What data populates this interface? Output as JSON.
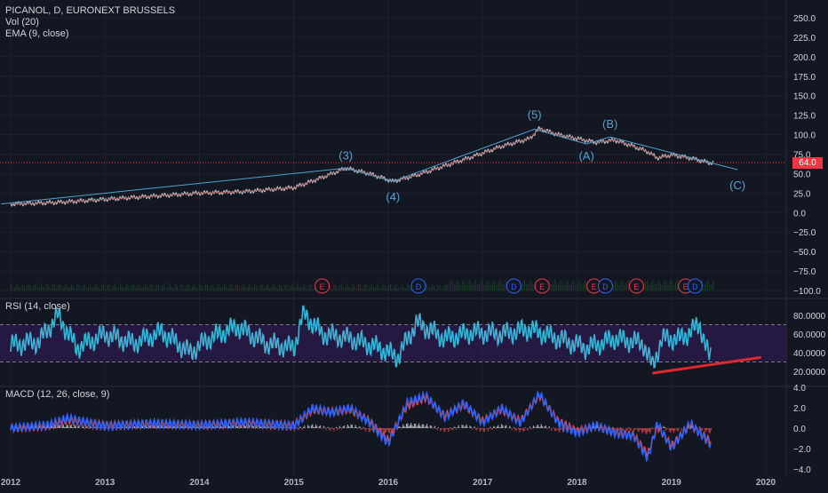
{
  "header": {
    "symbol_line": "PICANOL, D, EURONEXT BRUSSELS",
    "vol_label": "Vol (20)",
    "ema_label": "EMA (9, close)",
    "rsi_label": "RSI (14, close)",
    "macd_label": "MACD (12, 26, close, 9)"
  },
  "price_tag": "64.0",
  "colors": {
    "background": "#131722",
    "grid": "#1e222d",
    "price_line": "#b2b5be",
    "wave": "#4fa3d6",
    "rsi_line": "#36b5d8",
    "rsi_band": "#2a1a4a",
    "macd_line": "#2962ff",
    "signal_line": "#e5484d",
    "trendline_red": "#e0282e",
    "last_price": "#f23645"
  },
  "x_axis": {
    "labels": [
      "2012",
      "2013",
      "2014",
      "2015",
      "2016",
      "2017",
      "2018",
      "2019",
      "2020"
    ]
  },
  "chart_data": [
    {
      "type": "line",
      "title": "PICANOL, D, EURONEXT BRUSSELS",
      "x": [
        2012.0,
        2012.5,
        2013.0,
        2013.5,
        2014.0,
        2014.5,
        2015.0,
        2015.3,
        2015.55,
        2015.8,
        2016.05,
        2016.3,
        2016.6,
        2016.9,
        2017.2,
        2017.5,
        2017.6,
        2017.8,
        2018.0,
        2018.2,
        2018.4,
        2018.6,
        2018.75,
        2018.85,
        2019.0,
        2019.2,
        2019.4
      ],
      "y": [
        11,
        13,
        17,
        21,
        25,
        27,
        32,
        45,
        57,
        50,
        40,
        48,
        60,
        72,
        85,
        95,
        108,
        100,
        95,
        90,
        93,
        85,
        78,
        70,
        74,
        70,
        64
      ],
      "ylim": [
        -100,
        250
      ],
      "y_ticks": [
        "250.0",
        "225.0",
        "200.0",
        "175.0",
        "150.0",
        "125.0",
        "100.0",
        "75.0",
        "50.0",
        "25.0",
        "0.0",
        "−25.0",
        "−50.0",
        "−75.0",
        "−100.0"
      ],
      "last_price": 64.0,
      "wave_labels": [
        "(3)",
        "(4)",
        "(5)",
        "(A)",
        "(B)",
        "(C)"
      ],
      "wave_points": [
        {
          "label": "(3)",
          "x": 2015.55,
          "y": 57
        },
        {
          "label": "(4)",
          "x": 2016.05,
          "y": 40
        },
        {
          "label": "(5)",
          "x": 2017.55,
          "y": 107
        },
        {
          "label": "(A)",
          "x": 2018.1,
          "y": 88
        },
        {
          "label": "(B)",
          "x": 2018.35,
          "y": 97
        },
        {
          "label": "(C)",
          "x": 2019.7,
          "y": 55
        }
      ],
      "wave_start": {
        "x": 2011.9,
        "y": 11
      },
      "events": [
        {
          "label": "E",
          "x": 2015.3,
          "color": "red"
        },
        {
          "label": "D",
          "x": 2016.32,
          "color": "blue"
        },
        {
          "label": "D",
          "x": 2017.33,
          "color": "blue"
        },
        {
          "label": "E",
          "x": 2017.63,
          "color": "red"
        },
        {
          "label": "E",
          "x": 2018.18,
          "color": "red"
        },
        {
          "label": "D",
          "x": 2018.3,
          "color": "blue"
        },
        {
          "label": "E",
          "x": 2018.63,
          "color": "red"
        },
        {
          "label": "E",
          "x": 2019.15,
          "color": "red"
        },
        {
          "label": "D",
          "x": 2019.25,
          "color": "blue"
        }
      ]
    },
    {
      "type": "line",
      "title": "RSI (14, close)",
      "ylim": [
        10,
        95
      ],
      "y_ticks": [
        "80.0000",
        "60.0000",
        "40.0000",
        "20.0000"
      ],
      "band": [
        30,
        70
      ],
      "x": [
        2012.0,
        2012.3,
        2012.5,
        2012.7,
        2013.0,
        2013.3,
        2013.6,
        2013.9,
        2014.1,
        2014.4,
        2014.7,
        2015.0,
        2015.1,
        2015.3,
        2015.6,
        2015.9,
        2016.1,
        2016.3,
        2016.6,
        2016.9,
        2017.2,
        2017.5,
        2017.8,
        2018.1,
        2018.4,
        2018.7,
        2018.8,
        2018.9,
        2019.1,
        2019.3,
        2019.4
      ],
      "values": [
        48,
        52,
        80,
        45,
        60,
        50,
        62,
        40,
        55,
        68,
        50,
        45,
        82,
        60,
        55,
        45,
        35,
        72,
        55,
        62,
        60,
        65,
        55,
        45,
        55,
        50,
        25,
        55,
        55,
        70,
        35
      ],
      "trendline": {
        "x": [
          2018.8,
          2019.95
        ],
        "y": [
          18,
          35
        ]
      }
    },
    {
      "type": "line",
      "title": "MACD (12, 26, close, 9)",
      "ylim": [
        -4.2,
        4.2
      ],
      "y_ticks": [
        "4.0",
        "2.0",
        "0.0",
        "−2.0",
        "−4.0"
      ],
      "x": [
        2012.0,
        2012.4,
        2012.6,
        2013.0,
        2013.5,
        2014.0,
        2014.5,
        2015.0,
        2015.2,
        2015.4,
        2015.6,
        2015.8,
        2016.0,
        2016.2,
        2016.4,
        2016.6,
        2016.8,
        2017.0,
        2017.2,
        2017.4,
        2017.6,
        2017.8,
        2018.0,
        2018.2,
        2018.4,
        2018.6,
        2018.75,
        2018.85,
        2019.0,
        2019.2,
        2019.4
      ],
      "macd": [
        0,
        0.3,
        1.0,
        0.2,
        0.5,
        0.3,
        0.6,
        0.2,
        2.0,
        1.5,
        2.0,
        0.5,
        -1.5,
        2.5,
        3.2,
        1.0,
        2.5,
        0.5,
        2.0,
        0.5,
        3.4,
        0.5,
        -0.5,
        0.3,
        -0.5,
        -0.8,
        -3.0,
        0.5,
        -2.0,
        0.5,
        -1.5
      ],
      "signal": [
        0,
        0.2,
        0.8,
        0.3,
        0.4,
        0.3,
        0.5,
        0.3,
        1.8,
        1.6,
        1.8,
        0.7,
        -1.2,
        2.2,
        3.0,
        1.2,
        2.3,
        0.7,
        1.8,
        0.7,
        3.2,
        0.7,
        -0.3,
        0.2,
        -0.4,
        -0.7,
        -2.6,
        0.2,
        -1.7,
        0.3,
        -1.2
      ]
    }
  ]
}
